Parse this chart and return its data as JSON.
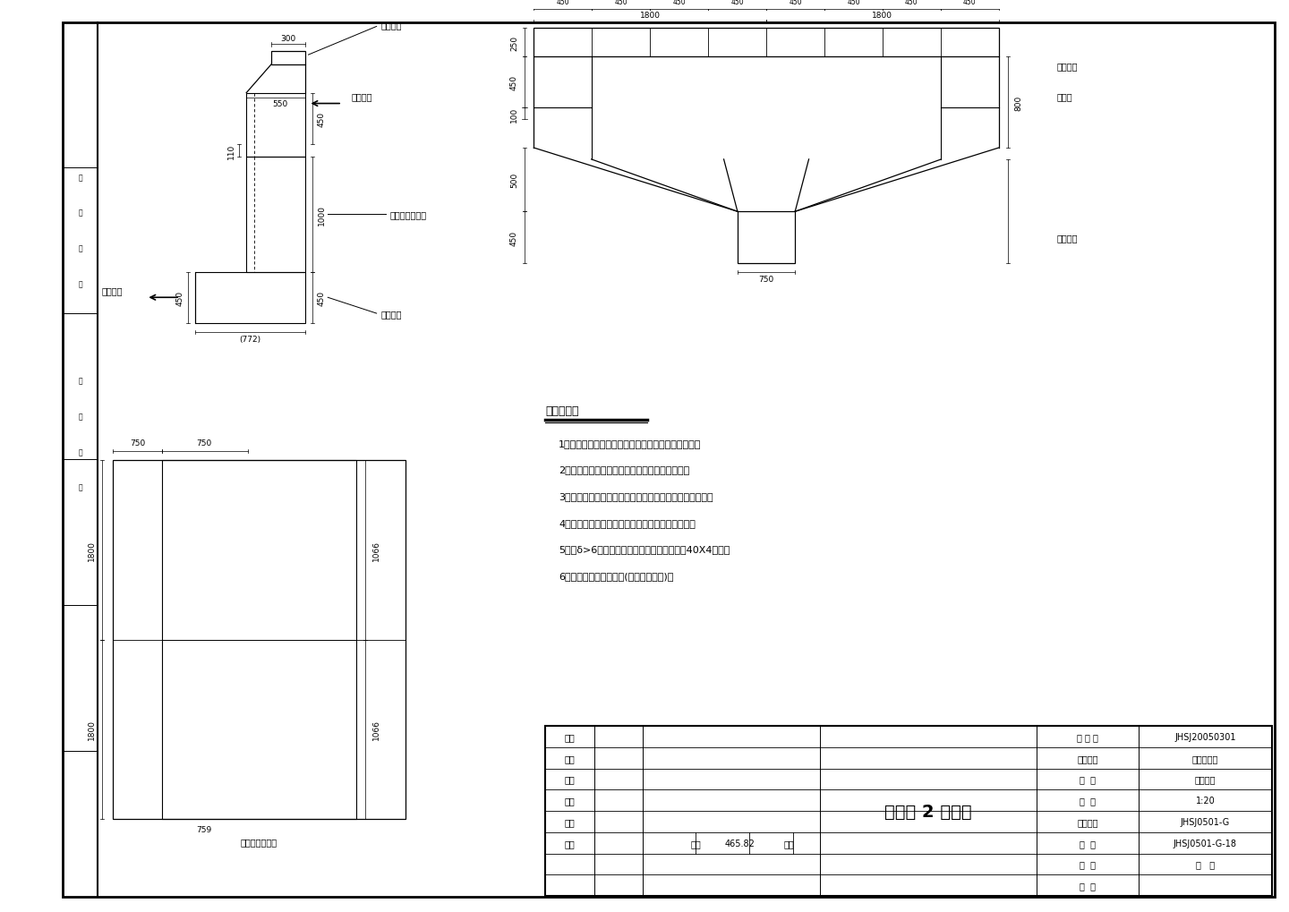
{
  "bg_color": "#ffffff",
  "line_color": "#000000",
  "title": "抽风罩 2 制作图",
  "notes_title": "制作说明：",
  "notes": [
    "1、本抽风罩罩尾部分利用链算机壁板作为罩的一面。",
    "2、本件应根据现场情况对（）尺寸复核后制作。",
    "3、焊缝全部满焊，焊接牢固，无漏焊，无砂眼，无毛刺。",
    "4、管件制作完毕，打毛刺，除锈，刷红丹漆两道。",
    "5、当δ>6时，必须开坡口焊接。加强筋采用40X4扁钢。",
    "6、在罩头内衬砌火水泥(或其它隔热层)。"
  ],
  "tb_rows": [
    [
      "审批",
      "",
      "工 程 号",
      "JHSJ20050301"
    ],
    [
      "审定",
      "",
      "设计阶段",
      "施工图设计"
    ],
    [
      "审核",
      "抽风罩 2 制作图",
      "专   业",
      "通风除尘"
    ],
    [
      "校检",
      "",
      "比   例",
      "1:20"
    ],
    [
      "设计",
      "",
      "所属图号",
      "JHSJ0501-G"
    ],
    [
      "制图",
      "重量|465.82|日期",
      "图   号",
      "JHSJ0501-G-18"
    ],
    [
      "",
      "",
      "共   张",
      "第   张"
    ],
    [
      "",
      "",
      "顺   号",
      ""
    ]
  ]
}
